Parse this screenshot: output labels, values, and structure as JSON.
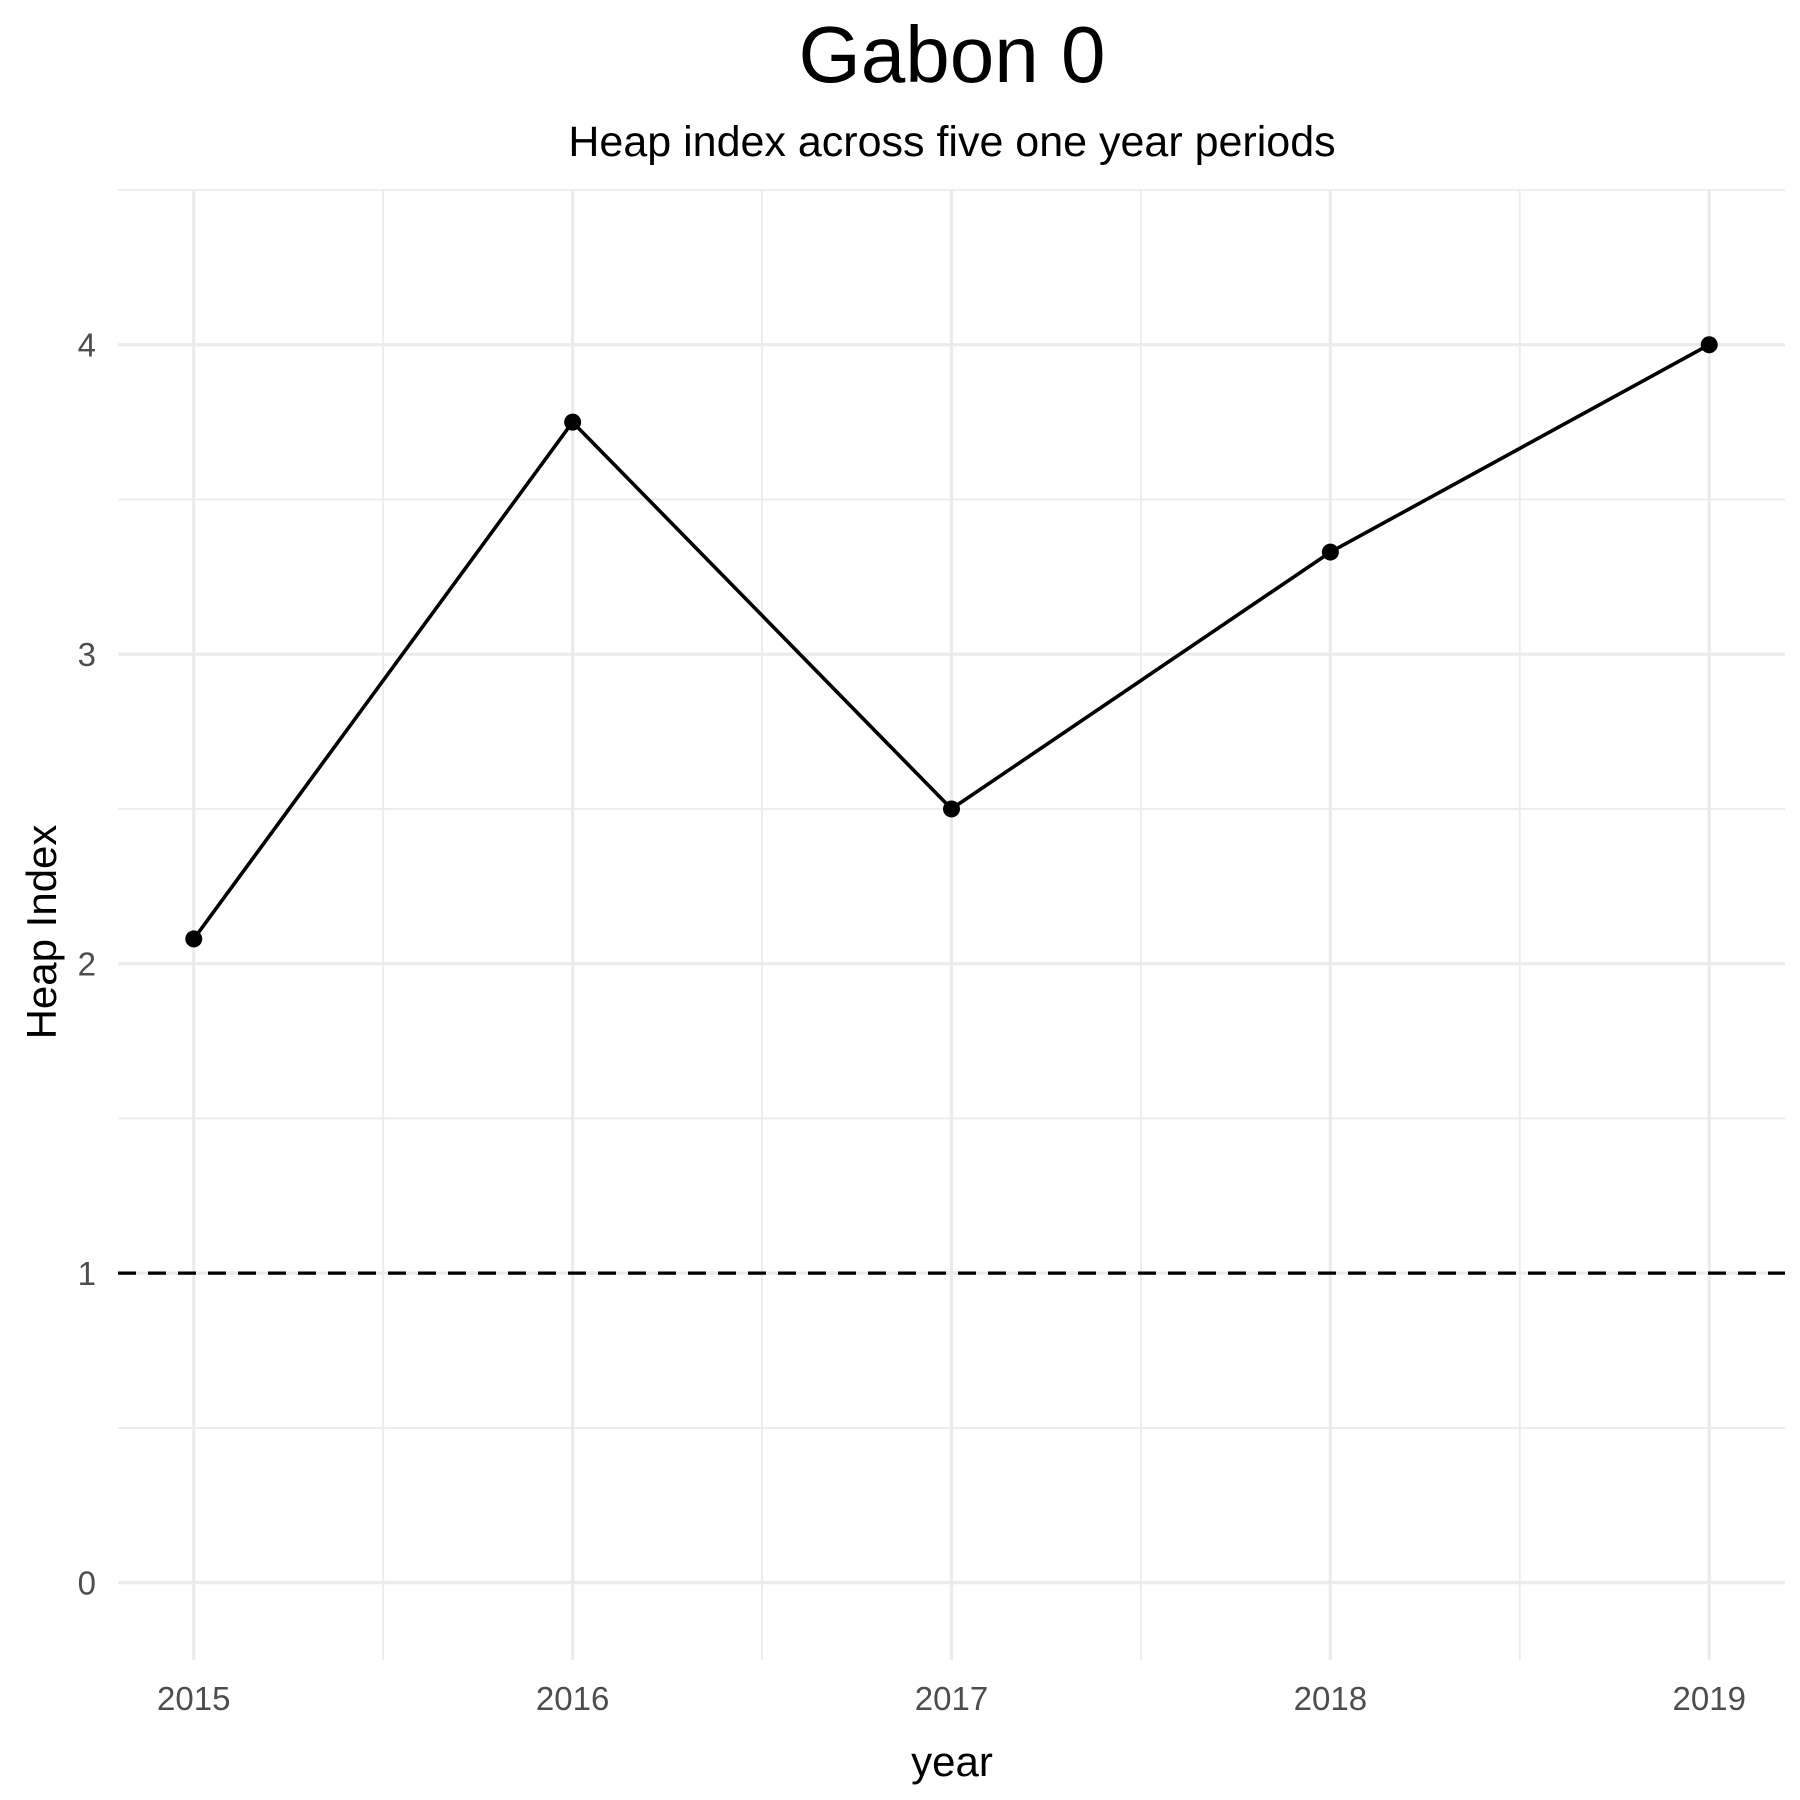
{
  "chart_data": {
    "type": "line",
    "title": "Gabon 0",
    "subtitle": "Heap index across five one year periods",
    "xlabel": "year",
    "ylabel": "Heap Index",
    "x": [
      2015,
      2016,
      2017,
      2018,
      2019
    ],
    "x_tick_labels": [
      "2015",
      "2016",
      "2017",
      "2018",
      "2019"
    ],
    "y_ticks": [
      0,
      1,
      2,
      3,
      4
    ],
    "y_tick_labels": [
      "0",
      "1",
      "2",
      "3",
      "4"
    ],
    "series": [
      {
        "values": [
          2.08,
          3.75,
          2.5,
          3.33,
          4.0
        ],
        "color": "#000000"
      }
    ],
    "reference_line": {
      "y": 1,
      "style": "dashed",
      "color": "#000000"
    },
    "xlim": [
      2014.8,
      2019.2
    ],
    "ylim": [
      -0.25,
      4.5
    ],
    "grid": true,
    "legend": "none"
  }
}
